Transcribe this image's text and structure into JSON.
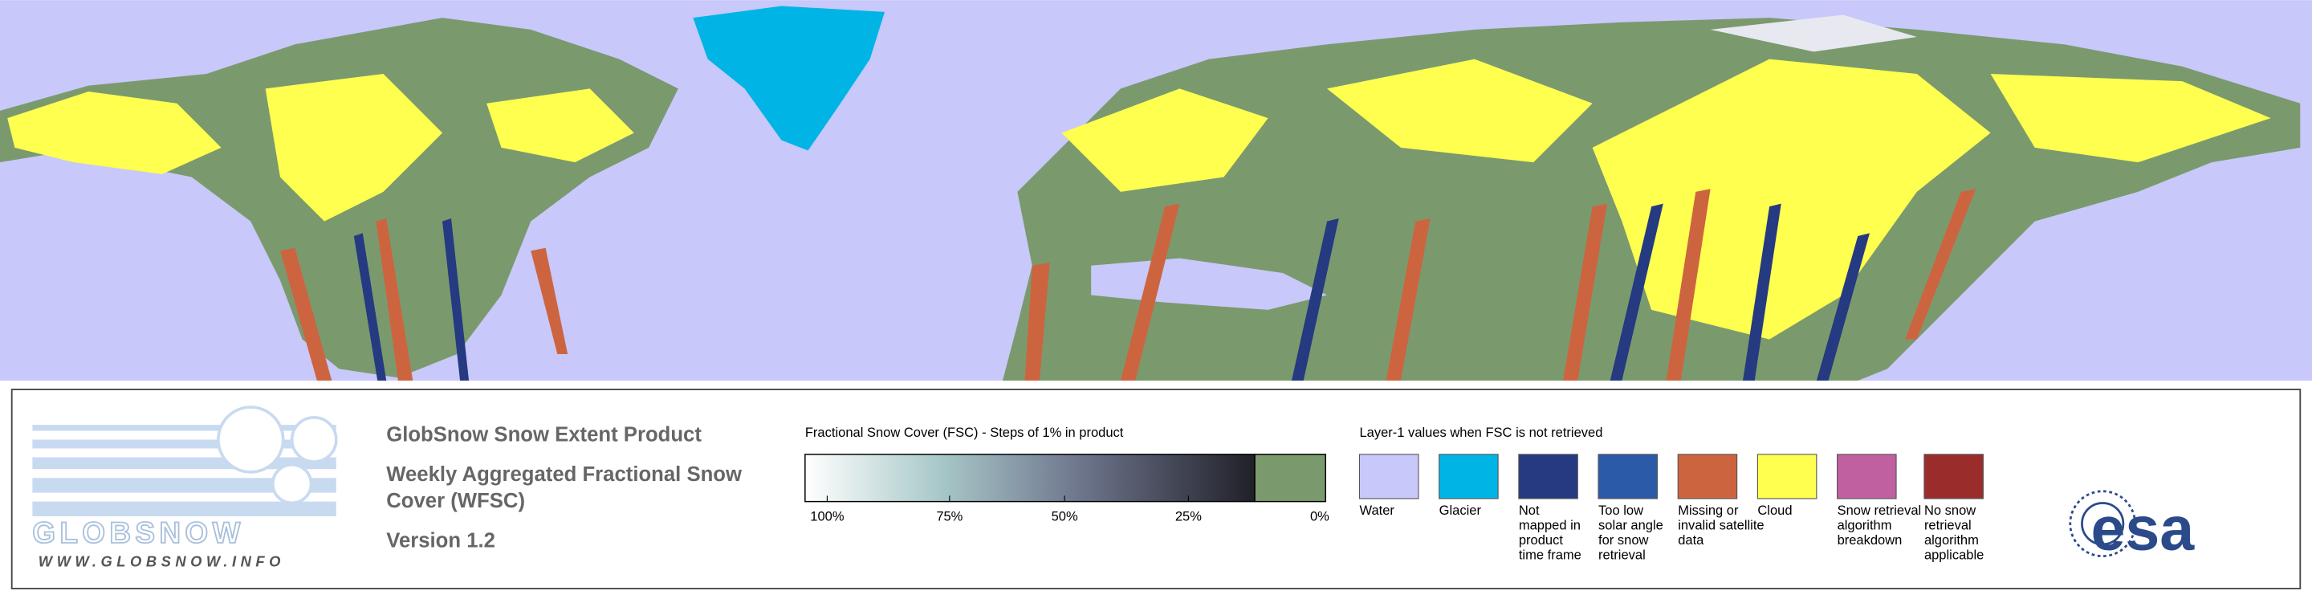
{
  "logo": {
    "name": "GLOBSNOW",
    "url": "WWW.GLOBSNOW.INFO"
  },
  "header": {
    "title": "GlobSnow Snow Extent Product",
    "subtitle": [
      "Weekly Aggregated Fractional Snow",
      "Cover (WFSC)"
    ],
    "version": "Version 1.2"
  },
  "fsc_legend": {
    "title": "Fractional Snow Cover (FSC) - Steps of 1% in product",
    "ticks": [
      "100%",
      "75%",
      "50%",
      "25%",
      "0%"
    ],
    "no_snow_color": "#7a9a6e"
  },
  "layer_legend": {
    "title": "Layer-1 values when FSC is not retrieved",
    "items": [
      {
        "label": [
          "Water"
        ],
        "color": "#c8c8fa"
      },
      {
        "label": [
          "Glacier"
        ],
        "color": "#00b4e6"
      },
      {
        "label": [
          "Not",
          "mapped in",
          "product",
          "time frame"
        ],
        "color": "#253a80"
      },
      {
        "label": [
          "Too low",
          "solar angle",
          "for snow",
          "retrieval"
        ],
        "color": "#2a5aa8"
      },
      {
        "label": [
          "Missing or",
          "invalid satellite",
          "data"
        ],
        "color": "#cd6440"
      },
      {
        "label": [
          "Cloud"
        ],
        "color": "#ffff50"
      },
      {
        "label": [
          "Snow retrieval",
          "algorithm",
          "breakdown"
        ],
        "color": "#c060a0"
      },
      {
        "label": [
          "No snow",
          "retrieval",
          "algorithm",
          "applicable"
        ],
        "color": "#9a2c2c"
      }
    ]
  },
  "agency": {
    "name": "esa"
  }
}
